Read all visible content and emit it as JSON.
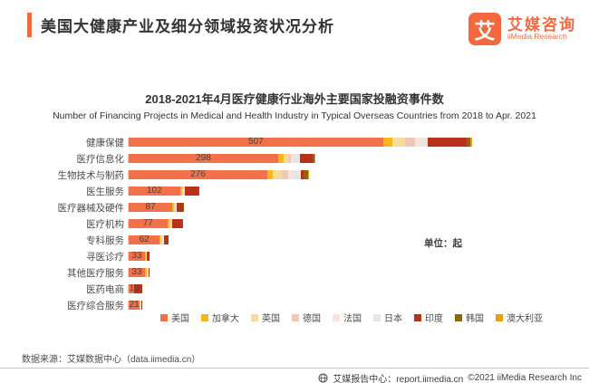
{
  "header": {
    "title": "美国大健康产业及细分领域投资状况分析",
    "logo": {
      "mark": "艾",
      "brand_cn": "艾媒咨询",
      "brand_en": "iiMedia Research"
    }
  },
  "chart_data": {
    "type": "bar",
    "orientation": "horizontal_stacked",
    "title": "2018-2021年4月医疗健康行业海外主要国家投融资事件数",
    "subtitle": "Number of Financing Projects in Medical and Health Industry in Typical Overseas Countries from  2018 to Apr. 2021",
    "unit_label": "单位：起",
    "categories": [
      "健康保健",
      "医疗信息化",
      "生物技术与制药",
      "医生服务",
      "医疗器械及硬件",
      "医疗机构",
      "专科服务",
      "寻医诊疗",
      "其他医疗服务",
      "医药电商",
      "医疗综合服务"
    ],
    "us_values": [
      507,
      298,
      276,
      102,
      87,
      77,
      62,
      33,
      33,
      10,
      21
    ],
    "value_labels_shown_for": "美国",
    "series": [
      {
        "name": "美国",
        "color": "#F2714B",
        "values": [
          507,
          298,
          276,
          102,
          87,
          77,
          62,
          33,
          33,
          10,
          21
        ]
      },
      {
        "name": "加拿大",
        "color": "#F7B819",
        "values": [
          18,
          11,
          11,
          4,
          3,
          4,
          2,
          1,
          4,
          1,
          1
        ]
      },
      {
        "name": "英国",
        "color": "#F6DC9C",
        "values": [
          25,
          9,
          18,
          2,
          2,
          2,
          2,
          1,
          1,
          0,
          1
        ]
      },
      {
        "name": "德国",
        "color": "#F0C8B4",
        "values": [
          20,
          5,
          13,
          1,
          1,
          1,
          1,
          0,
          0,
          0,
          0
        ]
      },
      {
        "name": "法国",
        "color": "#F6E3DB",
        "values": [
          14,
          4,
          11,
          1,
          1,
          1,
          1,
          0,
          0,
          0,
          0
        ]
      },
      {
        "name": "日本",
        "color": "#E8E6E3",
        "values": [
          11,
          14,
          14,
          2,
          2,
          2,
          2,
          1,
          2,
          0,
          2
        ]
      },
      {
        "name": "印度",
        "color": "#B8321A",
        "values": [
          78,
          25,
          6,
          27,
          13,
          20,
          9,
          5,
          1,
          16,
          1
        ]
      },
      {
        "name": "韩国",
        "color": "#8A660F",
        "values": [
          7,
          4,
          9,
          1,
          1,
          1,
          0,
          0,
          0,
          0,
          0
        ]
      },
      {
        "name": "澳大利亚",
        "color": "#EC9B0C",
        "values": [
          4,
          1,
          2,
          0,
          0,
          0,
          0,
          0,
          0,
          0,
          0
        ]
      }
    ],
    "labels_note": "Only 美国 segment values are labeled in the figure; other countries' segment sizes are estimated from bar lengths.",
    "legend_position": "bottom",
    "xlim": [
      0,
      880
    ]
  },
  "source_note": "数据来源：艾媒数据中心（data.iimedia.cn）",
  "footer": {
    "site_label": "艾媒报告中心：report.iimedia.cn",
    "copyright": "©2021  iiMedia Research  Inc"
  },
  "colors": {
    "accent_orange": "#F3683F",
    "title_text": "#333333",
    "body_text": "#4C4C4C",
    "axis_line": "#D9D9D9",
    "divider": "#C9C9C9"
  }
}
